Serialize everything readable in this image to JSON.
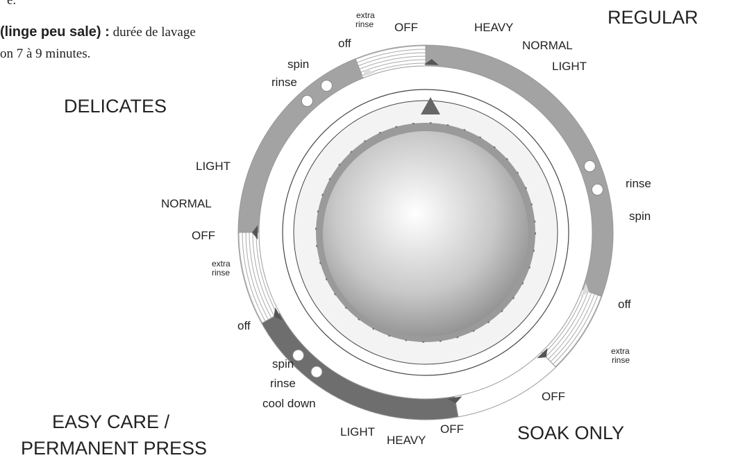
{
  "intro": {
    "line0": "e.",
    "bold": "(linge peu sale) :",
    "rest": " durée de lavage",
    "line2": "on 7 à 9 minutes."
  },
  "cycles": {
    "regular": "REGULAR",
    "delicates": "DELICATES",
    "easy_care": [
      "EASY CARE /",
      "PERMANENT PRESS"
    ],
    "soak_only": "SOAK ONLY"
  },
  "dial_labels": [
    "extra",
    "rinse",
    "OFF",
    "off",
    "HEAVY",
    "NORMAL",
    "LIGHT",
    "spin",
    "rinse",
    "LIGHT",
    "NORMAL",
    "OFF",
    "extra",
    "rinse",
    "off",
    "rinse",
    "spin",
    "off",
    "extra",
    "rinse",
    "OFF",
    "spin",
    "rinse",
    "cool down",
    "LIGHT",
    "HEAVY",
    "OFF"
  ]
}
